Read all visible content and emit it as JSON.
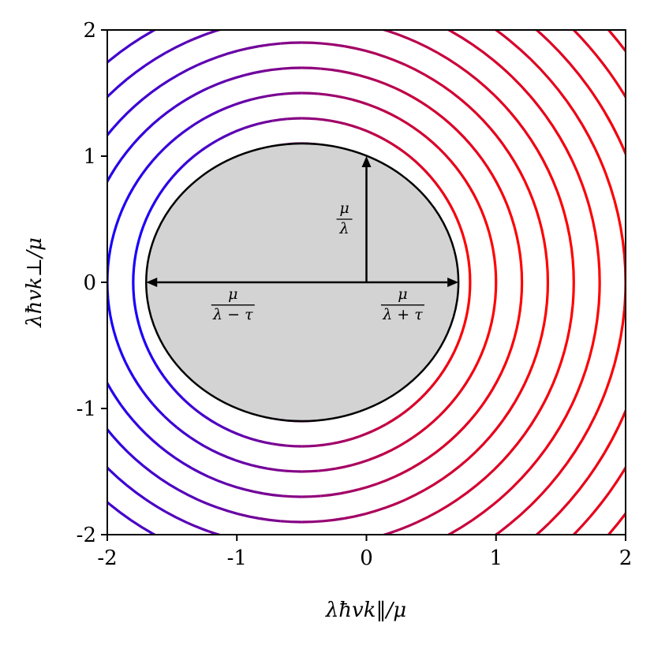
{
  "chart_data": {
    "type": "contour",
    "title": "",
    "xlabel": "λħvk‖/μ",
    "ylabel": "λħvk⊥/μ",
    "xlim": [
      -2,
      2
    ],
    "ylim": [
      -2,
      2
    ],
    "x_ticks": [
      "-2",
      "-1",
      "0",
      "1",
      "2"
    ],
    "y_ticks": [
      "-2",
      "-1",
      "0",
      "1",
      "2"
    ],
    "grid": false,
    "contour_center": [
      -0.5,
      0
    ],
    "contour_radii": [
      0.3,
      0.5,
      0.7,
      0.9,
      1.1,
      1.3,
      1.5,
      1.7,
      1.9,
      2.1,
      2.3,
      2.5,
      2.7,
      2.9,
      3.1
    ],
    "contour_color_start": "#ff0000",
    "contour_color_end": "#1400ff",
    "ellipse": {
      "center": [
        -0.5,
        0
      ],
      "x_left": -1.7,
      "x_right": 0.71,
      "half_height": 1.1,
      "fill": "#d3d3d3",
      "stroke": "#000000"
    },
    "arrows": [
      {
        "from": [
          0,
          0
        ],
        "to": [
          0,
          1.0
        ]
      },
      {
        "from": [
          0,
          0
        ],
        "to": [
          -1.7,
          0
        ]
      },
      {
        "from": [
          0,
          0
        ],
        "to": [
          0.71,
          0
        ]
      }
    ],
    "annotations": [
      {
        "num": "μ",
        "den": "λ",
        "at": [
          -0.17,
          0.5
        ]
      },
      {
        "num": "μ",
        "den": "λ − τ",
        "at": [
          -1.03,
          -0.18
        ]
      },
      {
        "num": "μ",
        "den": "λ + τ",
        "at": [
          0.28,
          -0.18
        ]
      }
    ]
  }
}
